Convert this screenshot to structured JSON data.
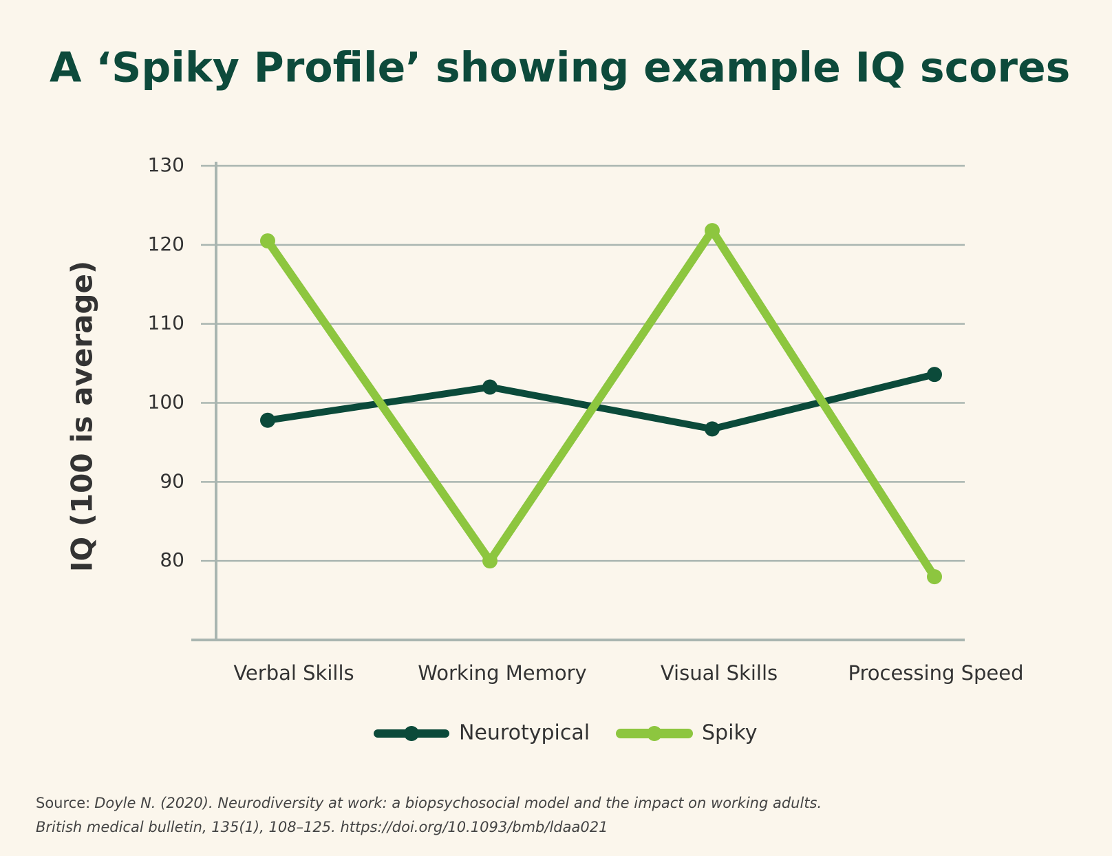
{
  "chart_data": {
    "type": "line",
    "title": "A ‘Spiky Profile’ showing example IQ scores",
    "y_label": "IQ (100 is average)",
    "categories": [
      "Verbal Skills",
      "Working Memory",
      "Visual Skills",
      "Processing Speed"
    ],
    "series": [
      {
        "name": "Neurotypical",
        "color": "#0b4a3a",
        "values": [
          97.8,
          102,
          96.7,
          103.6
        ]
      },
      {
        "name": "Spiky",
        "color": "#8dc63f",
        "values": [
          120.5,
          80,
          121.8,
          78
        ]
      }
    ],
    "ylim": [
      70,
      130
    ],
    "yticks": [
      80,
      90,
      100,
      110,
      120,
      130
    ],
    "grid": true,
    "legend": "bottom",
    "source_label": "Source:",
    "source_lines": [
      "Doyle N. (2020). Neurodiversity at work: a biopsychosocial model and the impact on working adults.",
      "British medical bulletin, 135(1), 108–125. https://doi.org/10.1093/bmb/ldaa021"
    ]
  }
}
